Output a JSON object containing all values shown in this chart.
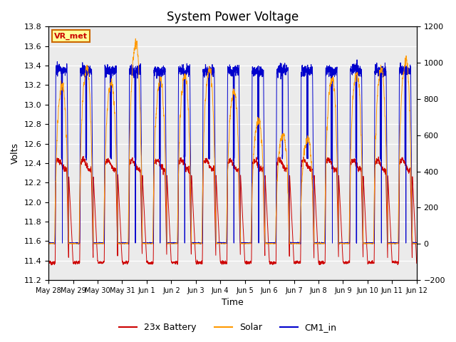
{
  "title": "System Power Voltage",
  "xlabel": "Time",
  "ylabel_left": "Volts",
  "ylim_left": [
    11.2,
    13.8
  ],
  "ylim_right": [
    -200,
    1200
  ],
  "yticks_left": [
    11.2,
    11.4,
    11.6,
    11.8,
    12.0,
    12.2,
    12.4,
    12.6,
    12.8,
    13.0,
    13.2,
    13.4,
    13.6,
    13.8
  ],
  "yticks_right": [
    -200,
    0,
    200,
    400,
    600,
    800,
    1000,
    1200
  ],
  "xtick_labels": [
    "May 28",
    "May 29",
    "May 30",
    "May 31",
    "Jun 1",
    "Jun 2",
    "Jun 3",
    "Jun 4",
    "Jun 5",
    "Jun 6",
    "Jun 7",
    "Jun 8",
    "Jun 9",
    "Jun 10",
    "Jun 11",
    "Jun 12"
  ],
  "legend_labels": [
    "23x Battery",
    "Solar",
    "CM1_in"
  ],
  "legend_colors": [
    "#cc0000",
    "#ff9900",
    "#0000cc"
  ],
  "annotation_text": "VR_met",
  "annotation_box_color": "#ffff99",
  "annotation_box_edge": "#cc6600",
  "plot_bg_color": "#ebebeb",
  "grid_color": "#ffffff",
  "title_fontsize": 12,
  "axis_fontsize": 9,
  "tick_fontsize": 8,
  "n_days": 15,
  "n_pts_per_day": 288,
  "bat_night": 11.38,
  "bat_day_plateau": 12.38,
  "cm1_night": 11.58,
  "cm1_day_peak": 13.5,
  "solar_peak_vals": [
    900,
    1000,
    920,
    1150,
    940,
    960,
    1000,
    870,
    700,
    620,
    600,
    950,
    980,
    1000,
    1050
  ],
  "day_start": 0.27,
  "day_end": 0.8
}
